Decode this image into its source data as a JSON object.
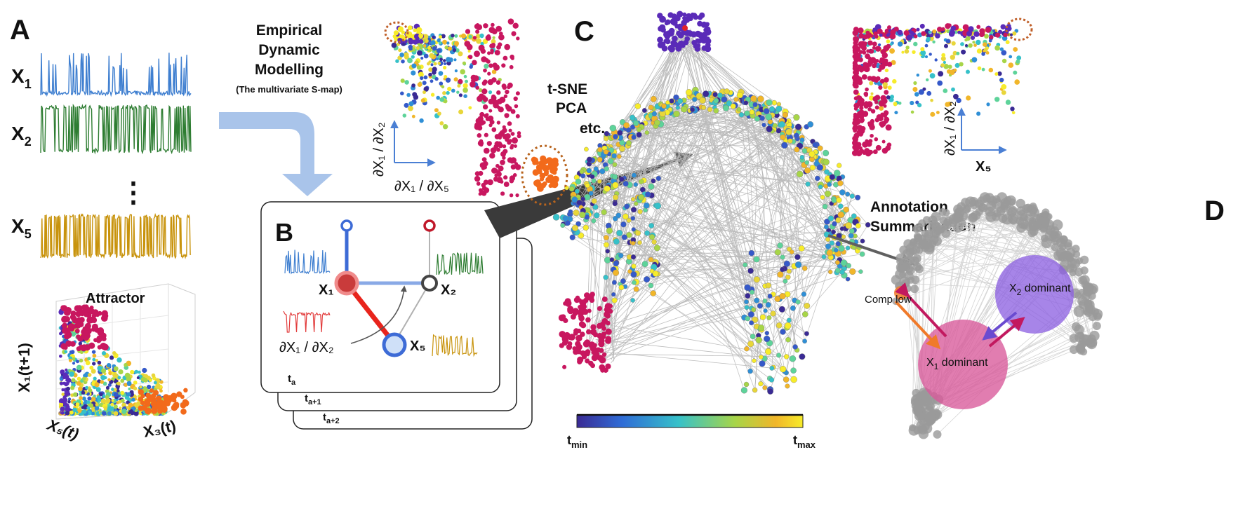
{
  "panels": {
    "a": {
      "letter": "A",
      "series_labels": [
        {
          "base": "X",
          "sub": "1"
        },
        {
          "base": "X",
          "sub": "2"
        },
        {
          "base": "X",
          "sub": "5"
        }
      ],
      "series_colors": [
        "#3f7fd0",
        "#2e7d32",
        "#c8930c"
      ],
      "ellipsis": "⋮",
      "attractor": {
        "title": "Attractor",
        "y_axis": "X₁(t+1)",
        "x_axis_left": "X₅(t)",
        "x_axis_right": "X₃(t)"
      }
    },
    "edm": {
      "line1": "Empirical",
      "line2": "Dynamic",
      "line3": "Modelling",
      "sub": "(The multivariate S-map)"
    },
    "b": {
      "letter": "B",
      "node_x1": "X₁",
      "node_x2": "X₂",
      "node_x5": "X₅",
      "partial": "∂X₁ / ∂X₂",
      "slices": [
        {
          "base": "t",
          "sub": "a"
        },
        {
          "base": "t",
          "sub": "a+1"
        },
        {
          "base": "t",
          "sub": "a+2"
        }
      ]
    },
    "scatter_left": {
      "ylabel": "∂X₁ / ∂X₂",
      "xlabel": "∂X₁ / ∂X₅"
    },
    "c": {
      "letter": "C",
      "methods": [
        "t-SNE",
        "PCA",
        "etc."
      ],
      "colorbar": {
        "min_base": "t",
        "min_sub": "min",
        "max_base": "t",
        "max_sub": "max"
      }
    },
    "scatter_right": {
      "ylabel": "∂X₁ / ∂X₂",
      "xlabel": "X₅"
    },
    "d": {
      "letter": "D",
      "title_line1": "Annotation",
      "title_line2": "Summarization",
      "comp_low": "Comp low",
      "x1_dominant_base": "X",
      "x1_dominant_sub": "1",
      "x1_dominant_rest": " dominant",
      "x2_dominant_base": "X",
      "x2_dominant_sub": "2",
      "x2_dominant_rest": " dominant"
    }
  },
  "colors": {
    "magenta_cluster": "#c8175f",
    "purple_cluster": "#5a2bb8",
    "orange_cluster": "#f26a1b",
    "edge_gray": "#b5b5b5",
    "arrow_blue": "#a9c4ea",
    "arrow_dark": "#606060"
  }
}
